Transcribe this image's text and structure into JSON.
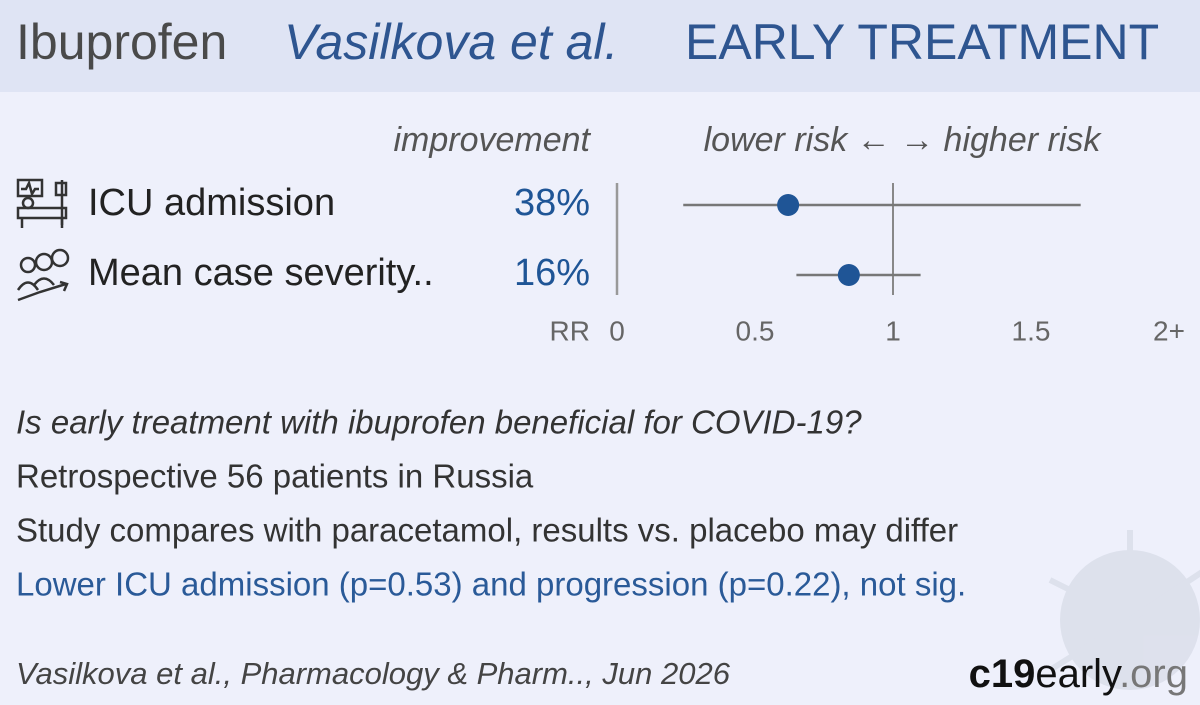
{
  "header": {
    "drug": "Ibuprofen",
    "authors": "Vasilkova et al.",
    "category": "EARLY TREATMENT"
  },
  "chart_data": {
    "type": "forest",
    "column_header": "improvement",
    "direction_label": "lower risk ← → higher risk",
    "x_label": "RR",
    "categories": [
      "ICU admission",
      "Mean case severity.."
    ],
    "improvement_labels": [
      "38%",
      "16%"
    ],
    "values": [
      0.62,
      0.84
    ],
    "ci_low": [
      0.24,
      0.65
    ],
    "ci_high": [
      1.68,
      1.1
    ],
    "xlim": [
      0,
      2
    ],
    "xticks": [
      0,
      0.5,
      1,
      1.5,
      {
        "value": 2,
        "label": "2+"
      }
    ],
    "reference": 1,
    "color": "#1f5596"
  },
  "summary": [
    "Is early treatment with ibuprofen beneficial for COVID-19?",
    "Retrospective 56 patients in Russia",
    "Study compares with paracetamol, results vs. placebo may differ",
    "Lower ICU admission (p=0.53) and progression (p=0.22), not sig."
  ],
  "citation": "Vasilkova et al., Pharmacology & Pharm.., Jun 2026",
  "brand": {
    "prefix": "c19",
    "middle": "early",
    "suffix": ".org"
  }
}
